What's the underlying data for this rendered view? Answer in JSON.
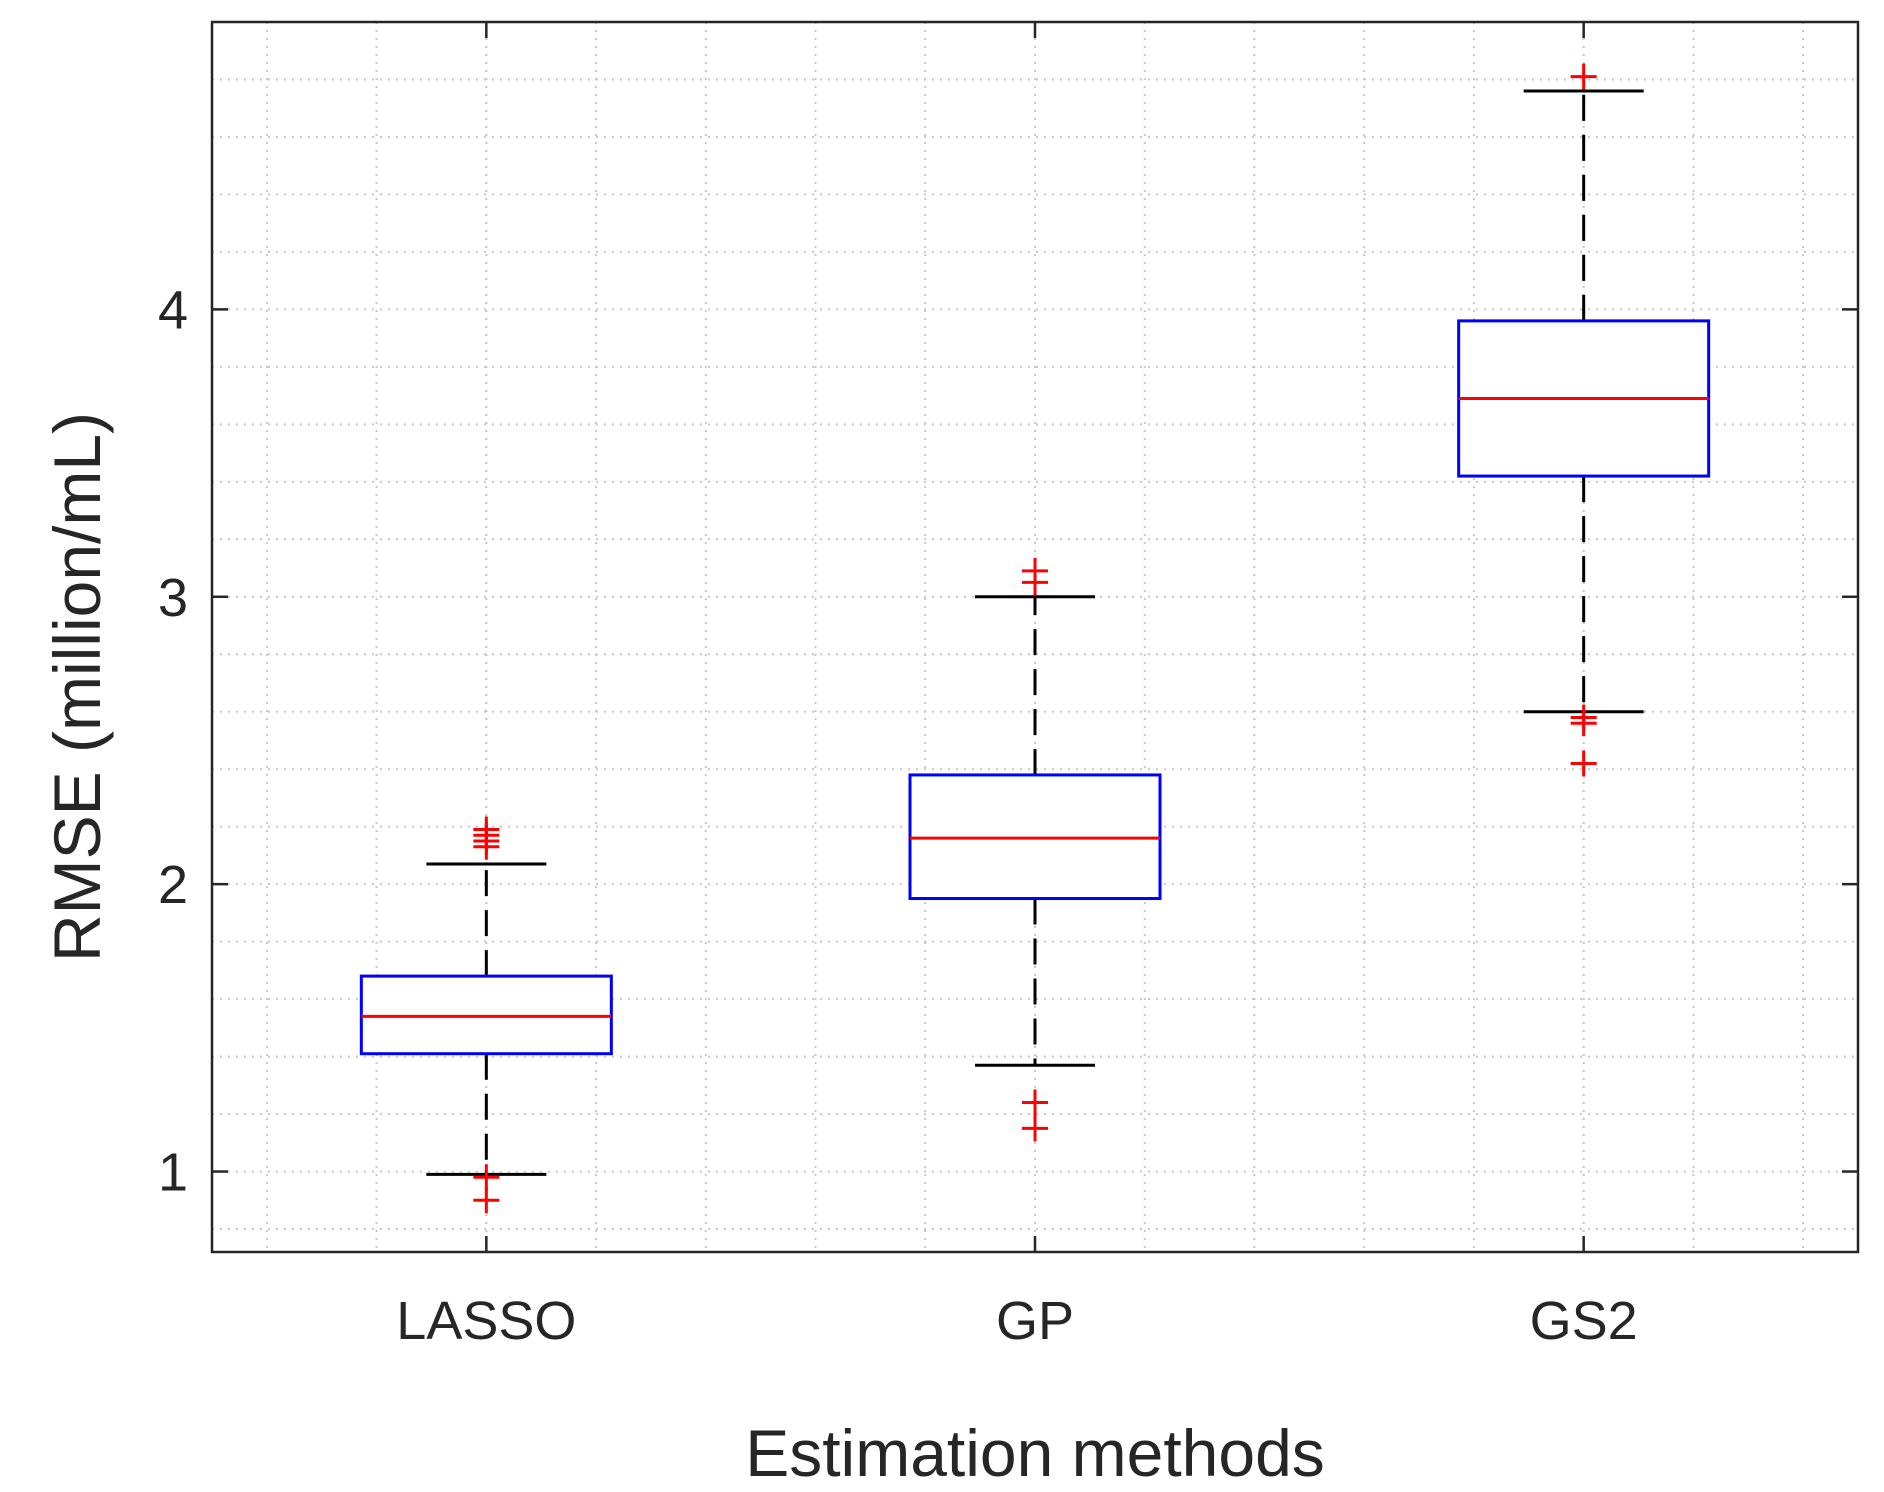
{
  "chart_data": {
    "type": "box",
    "title": "",
    "xlabel": "Estimation methods",
    "ylabel": "RMSE (million/mL)",
    "ylim": [
      0.72,
      5.0
    ],
    "yticks": [
      1,
      2,
      3,
      4
    ],
    "yminor_step": 0.2,
    "grid": true,
    "categories": [
      "LASSO",
      "GP",
      "GS2"
    ],
    "boxes": [
      {
        "name": "LASSO",
        "whisker_low": 0.99,
        "q1": 1.41,
        "median": 1.54,
        "q3": 1.68,
        "whisker_high": 2.07,
        "outliers": [
          0.98,
          0.9,
          2.13,
          2.15,
          2.17,
          2.19
        ]
      },
      {
        "name": "GP",
        "whisker_low": 1.37,
        "q1": 1.95,
        "median": 2.16,
        "q3": 2.38,
        "whisker_high": 3.0,
        "outliers": [
          1.24,
          1.15,
          3.05,
          3.09
        ]
      },
      {
        "name": "GS2",
        "whisker_low": 2.6,
        "q1": 3.42,
        "median": 3.69,
        "q3": 3.96,
        "whisker_high": 4.76,
        "outliers": [
          2.58,
          2.56,
          2.42,
          4.81
        ]
      }
    ],
    "colors": {
      "box": "#0000ff",
      "median": "#ff0000",
      "whisker": "#000000",
      "outlier": "#ff0000",
      "axis": "#262626",
      "grid": "#c8c8c8"
    }
  }
}
